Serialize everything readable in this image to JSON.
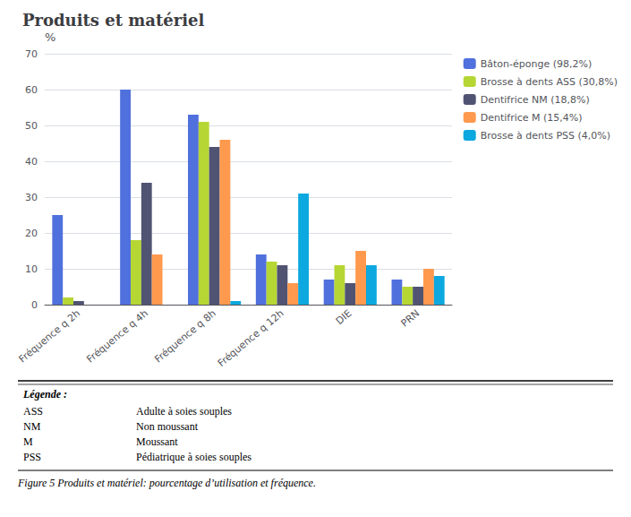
{
  "chart_data": {
    "type": "bar",
    "title": "Produits et matériel",
    "ylabel": "%",
    "categories": [
      "Fréquence q 2h",
      "Fréquence q 4h",
      "Fréquence q 8h",
      "Fréquence q 12h",
      "DIE",
      "PRN"
    ],
    "series": [
      {
        "name": "Bâton-éponge (98,2%)",
        "values": [
          25,
          60,
          53,
          14,
          7,
          7
        ]
      },
      {
        "name": "Brosse à dents ASS (30,8%)",
        "values": [
          2,
          18,
          51,
          12,
          11,
          5
        ]
      },
      {
        "name": "Dentifrice NM (18,8%)",
        "values": [
          1,
          34,
          44,
          11,
          6,
          5
        ]
      },
      {
        "name": "Dentifrice M (15,4%)",
        "values": [
          0,
          14,
          46,
          6,
          15,
          10
        ]
      },
      {
        "name": "Brosse à dents PSS (4,0%)",
        "values": [
          0,
          0,
          1,
          31,
          11,
          8
        ]
      }
    ],
    "ylim": [
      0,
      70
    ],
    "yticks": [
      0,
      10,
      20,
      30,
      40,
      50,
      60,
      70
    ],
    "grid": true,
    "legend": "upper right",
    "legend_table": {
      "title": "Légende :",
      "items": [
        [
          "ASS",
          "Adulte à soies souples"
        ],
        [
          "NM",
          "Non moussant"
        ],
        [
          "M",
          "Moussant"
        ],
        [
          "PSS",
          "Pédiatrique à soies souples"
        ]
      ]
    },
    "caption": "Figure 5 Produits et matériel: pourcentage d’utilisation et fréquence."
  }
}
